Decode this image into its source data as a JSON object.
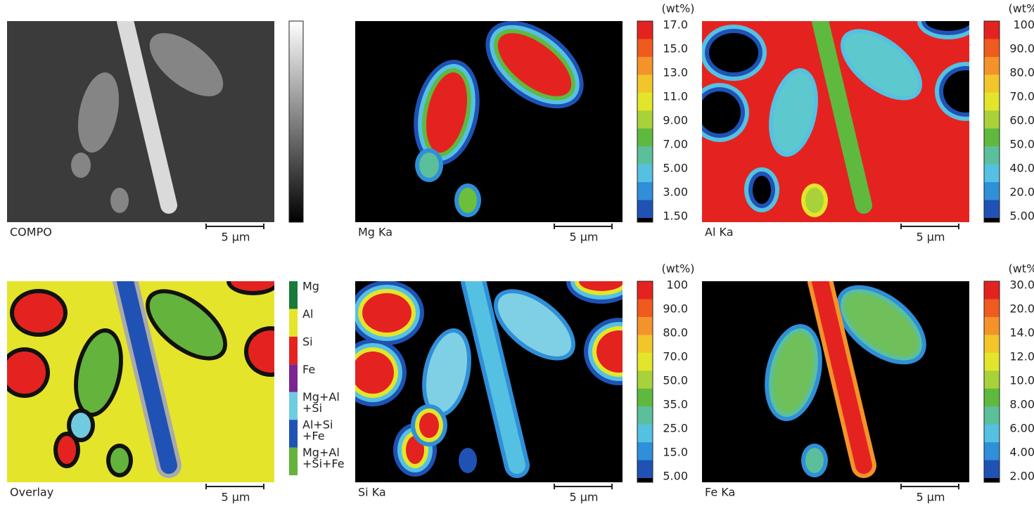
{
  "panels": [
    {
      "label": "COMPO",
      "scale": "5 µm"
    },
    {
      "label": "Mg Ka",
      "scale": "5 µm",
      "unit": "(wt%)",
      "ticks": [
        "17.0",
        "15.0",
        "13.0",
        "11.0",
        "9.00",
        "7.00",
        "5.00",
        "3.00",
        "1.50"
      ]
    },
    {
      "label": "Al Ka",
      "scale": "5 µm",
      "unit": "(wt%)",
      "ticks": [
        "100",
        "90.0",
        "80.0",
        "70.0",
        "60.0",
        "50.0",
        "40.0",
        "20.0",
        "5.00"
      ]
    },
    {
      "label": "Overlay",
      "scale": "5 µm",
      "legend": [
        {
          "lines": [
            "Mg"
          ]
        },
        {
          "lines": [
            "Al"
          ]
        },
        {
          "lines": [
            "Si"
          ]
        },
        {
          "lines": [
            "Fe"
          ]
        },
        {
          "lines": [
            "Mg+Al",
            "+Si"
          ]
        },
        {
          "lines": [
            "Al+Si",
            "+Fe"
          ]
        },
        {
          "lines": [
            "Mg+Al",
            "+Si+Fe"
          ]
        }
      ]
    },
    {
      "label": "Si Ka",
      "scale": "5 µm",
      "unit": "(wt%)",
      "ticks": [
        "100",
        "90.0",
        "80.0",
        "70.0",
        "50.0",
        "35.0",
        "25.0",
        "15.0",
        "5.00"
      ]
    },
    {
      "label": "Fe Ka",
      "scale": "5 µm",
      "unit": "(wt%)",
      "ticks": [
        "30.0",
        "20.0",
        "14.0",
        "12.0",
        "10.0",
        "8.00",
        "6.00",
        "4.00",
        "2.00"
      ]
    }
  ]
}
